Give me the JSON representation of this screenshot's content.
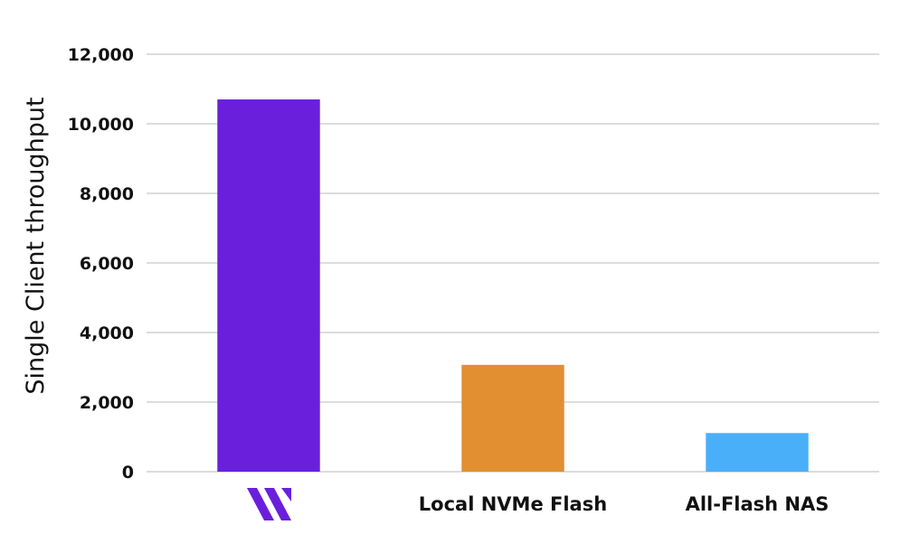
{
  "chart_data": {
    "type": "bar",
    "title": "",
    "xlabel": "",
    "ylabel": "Single Client throughput",
    "categories": [
      "",
      "Local NVMe Flash",
      "All-Flash NAS"
    ],
    "category_icons": [
      "brand-logo-icon",
      null,
      null
    ],
    "values": [
      10700,
      3070,
      1110
    ],
    "colors": [
      "#6a1fdc",
      "#e18f30",
      "#4aaff9"
    ],
    "ylim": [
      0,
      12000
    ],
    "yticks": [
      0,
      2000,
      4000,
      6000,
      8000,
      10000,
      12000
    ],
    "ytick_labels": [
      "0",
      "2,000",
      "4,000",
      "6,000",
      "8,000",
      "10,000",
      "12,000"
    ],
    "grid": true,
    "legend": "none",
    "logo_color": "#6a1fdc"
  }
}
